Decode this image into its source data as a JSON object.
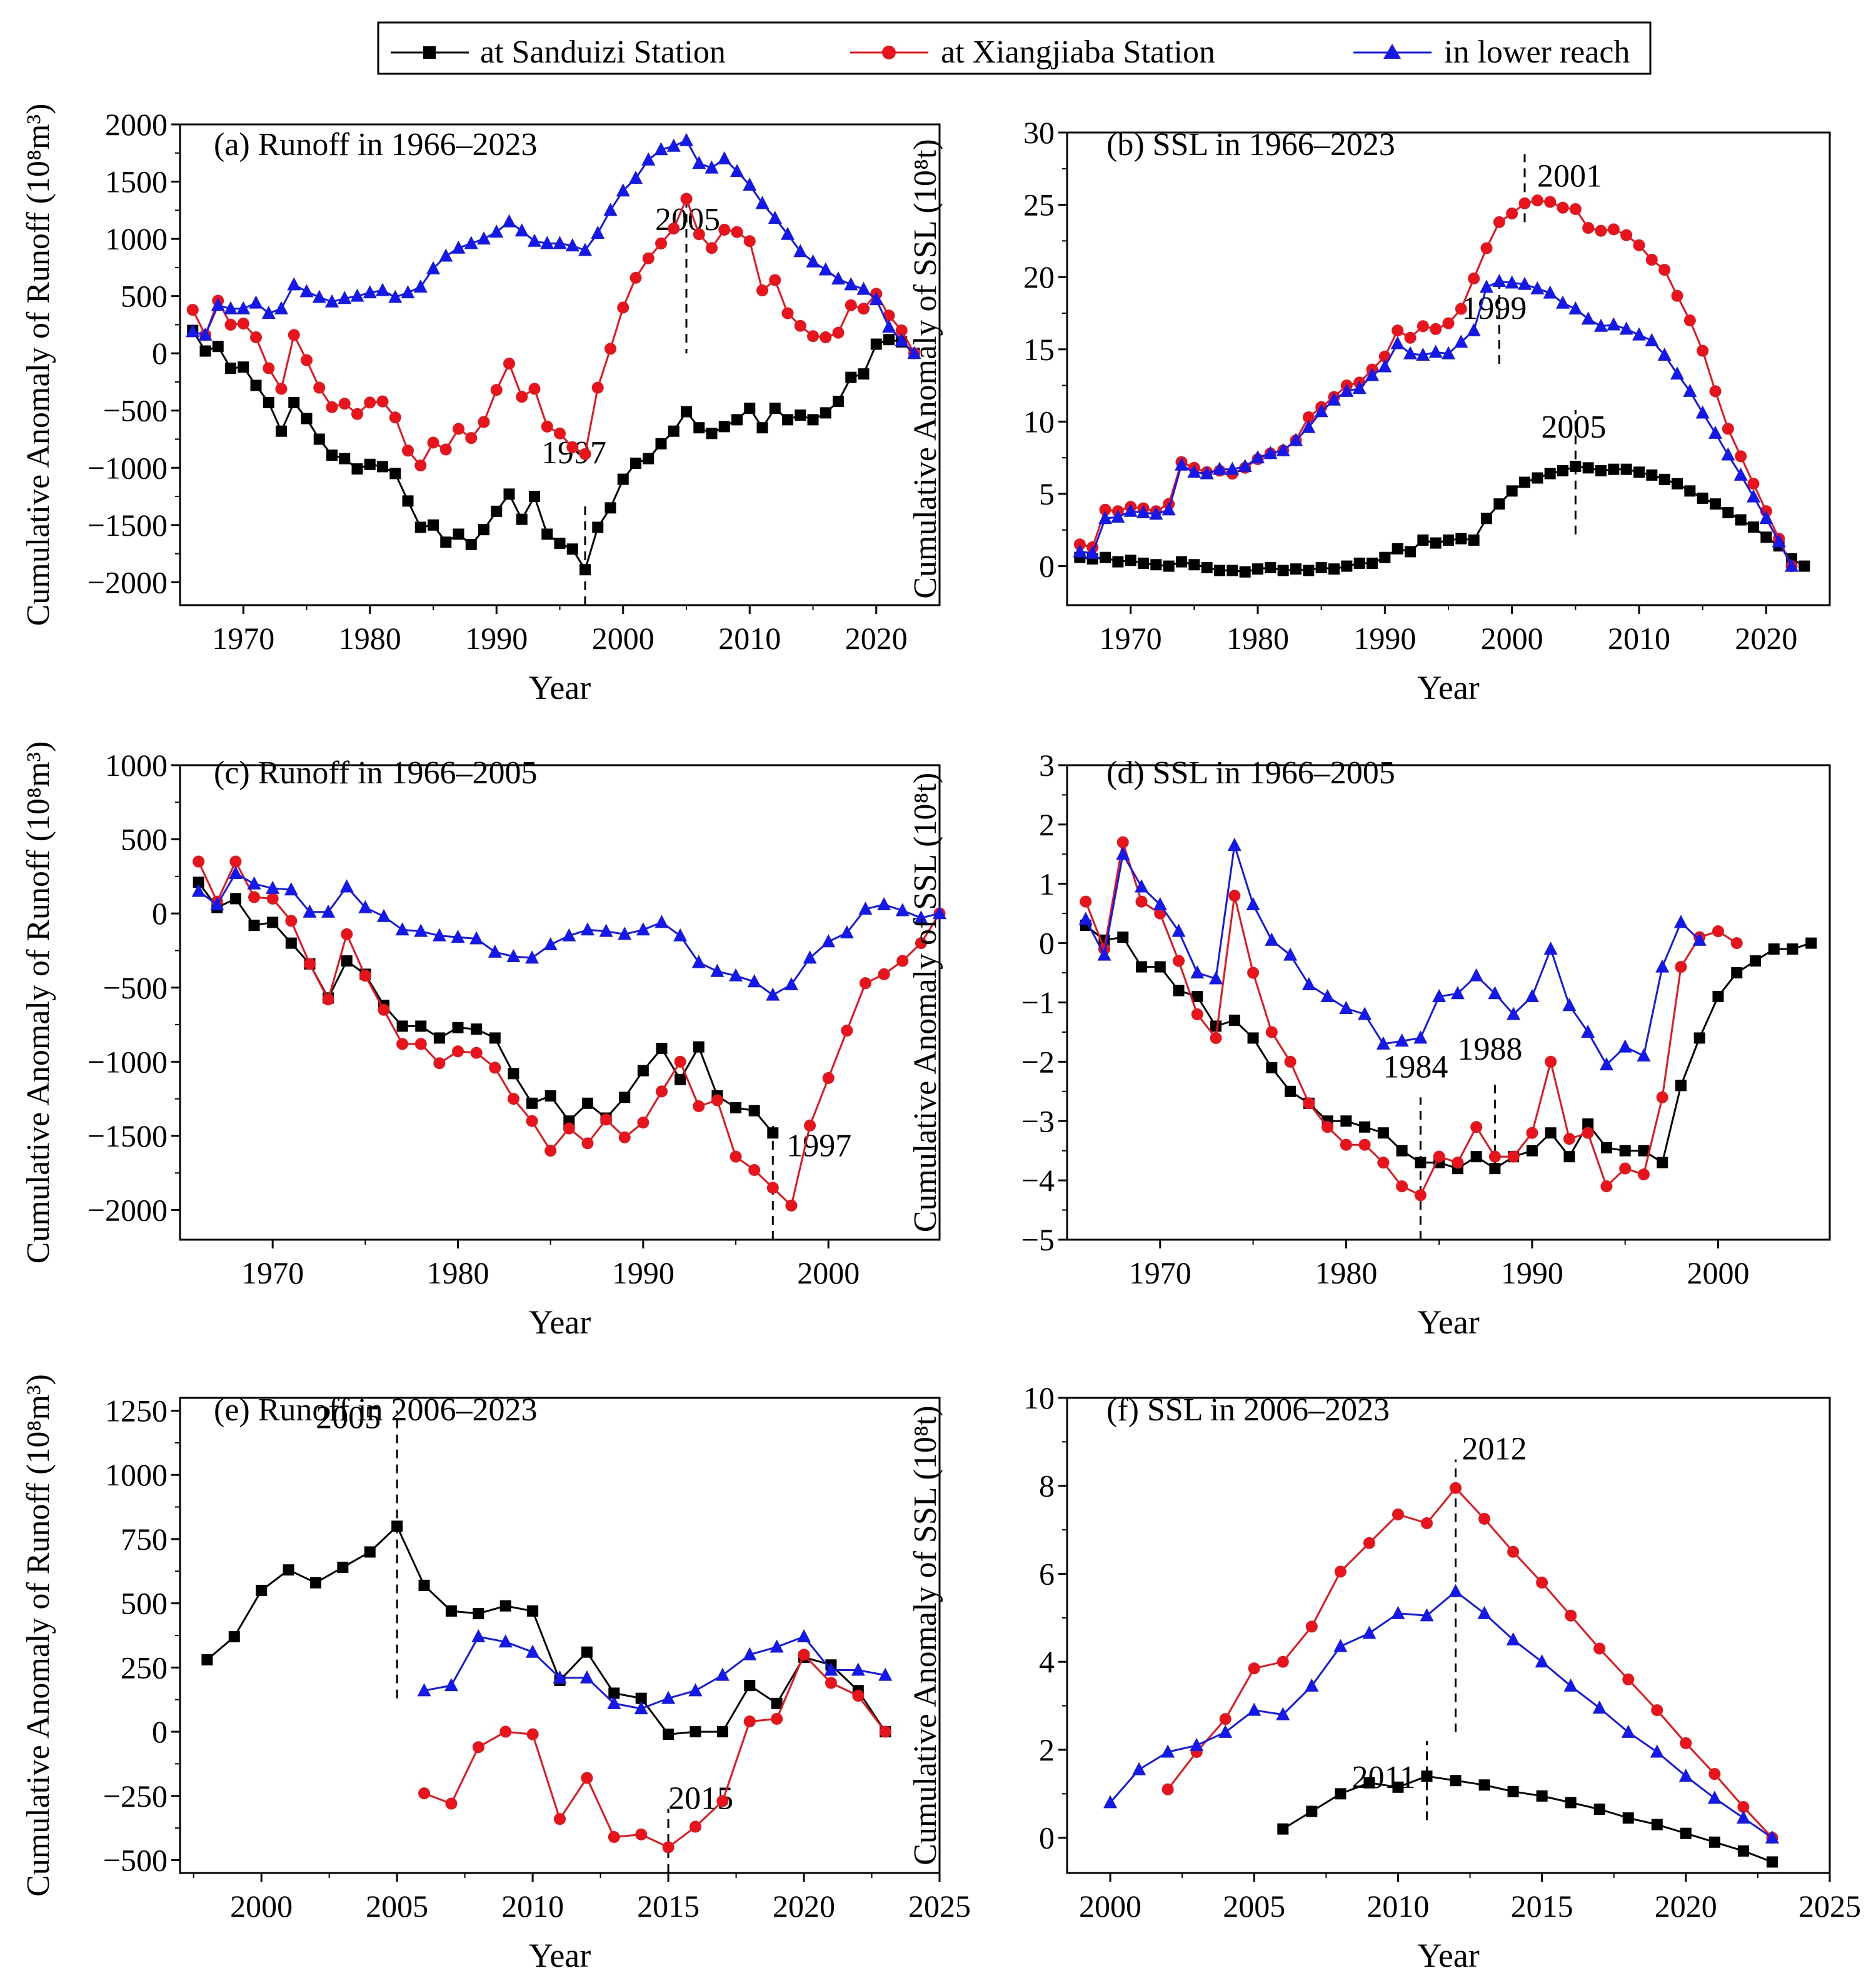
{
  "legend": {
    "entries": [
      {
        "name": "at Sanduizi Station",
        "color": "#000000",
        "marker": "square"
      },
      {
        "name": "at Xiangjiaba Station",
        "color": "#e8141c",
        "marker": "circle"
      },
      {
        "name": "in lower reach",
        "color": "#1418e8",
        "marker": "triangle"
      }
    ]
  },
  "chart_data": [
    {
      "id": "a",
      "type": "line",
      "title": "(a) Runoff in 1966–2023",
      "xlabel": "Year",
      "ylabel": "Cumulative Anomaly of Runoff (10⁸m³)",
      "xlim": [
        1965,
        2025
      ],
      "ylim": [
        -2200,
        2000
      ],
      "xticks": [
        1970,
        1980,
        1990,
        2000,
        2010,
        2020
      ],
      "yticks": [
        -2000,
        -1500,
        -1000,
        -500,
        0,
        500,
        1000,
        1500,
        2000
      ],
      "series": [
        {
          "name": "at Sanduizi Station",
          "x0": 1966,
          "values": [
            200,
            20,
            60,
            -130,
            -120,
            -280,
            -430,
            -680,
            -430,
            -570,
            -750,
            -890,
            -920,
            -1010,
            -970,
            -990,
            -1050,
            -1290,
            -1520,
            -1500,
            -1650,
            -1580,
            -1670,
            -1540,
            -1380,
            -1230,
            -1450,
            -1250,
            -1580,
            -1660,
            -1710,
            -1890,
            -1520,
            -1350,
            -1100,
            -960,
            -920,
            -790,
            -680,
            -510,
            -650,
            -700,
            -640,
            -580,
            -480,
            -650,
            -480,
            -580,
            -540,
            -580,
            -520,
            -420,
            -210,
            -180,
            80,
            120,
            100,
            0
          ]
        },
        {
          "name": "at Xiangjiaba Station",
          "x0": 1966,
          "values": [
            380,
            160,
            460,
            250,
            260,
            140,
            -130,
            -310,
            160,
            -60,
            -300,
            -470,
            -440,
            -530,
            -430,
            -420,
            -560,
            -850,
            -980,
            -780,
            -840,
            -660,
            -740,
            -600,
            -320,
            -90,
            -380,
            -310,
            -640,
            -700,
            -820,
            -880,
            -300,
            40,
            400,
            660,
            830,
            960,
            1090,
            1350,
            1040,
            920,
            1080,
            1060,
            980,
            550,
            640,
            350,
            240,
            150,
            140,
            180,
            420,
            390,
            520,
            330,
            200,
            0
          ]
        },
        {
          "name": "in lower reach",
          "x0": 1966,
          "values": [
            190,
            160,
            420,
            390,
            390,
            440,
            350,
            390,
            600,
            540,
            490,
            450,
            480,
            500,
            530,
            550,
            490,
            530,
            580,
            740,
            850,
            920,
            960,
            1000,
            1060,
            1150,
            1070,
            980,
            960,
            960,
            940,
            900,
            1050,
            1250,
            1420,
            1530,
            1690,
            1780,
            1810,
            1860,
            1660,
            1620,
            1700,
            1590,
            1470,
            1310,
            1180,
            1040,
            890,
            800,
            730,
            650,
            600,
            560,
            470,
            230,
            110,
            0
          ]
        }
      ],
      "annotations": [
        {
          "text": "2005",
          "x": 2005,
          "vline": [
            1350,
            0
          ]
        },
        {
          "text": "1997",
          "x": 1997,
          "vline": [
            -2200,
            -1300
          ]
        }
      ]
    },
    {
      "id": "b",
      "type": "line",
      "title": "(b) SSL in 1966–2023",
      "xlabel": "Year",
      "ylabel": "Cumulative Anomaly of SSL (10⁸t)",
      "xlim": [
        1965,
        2025
      ],
      "ylim": [
        -2.7,
        30
      ],
      "xticks": [
        1970,
        1980,
        1990,
        2000,
        2010,
        2020
      ],
      "yticks": [
        0,
        5,
        10,
        15,
        20,
        25,
        30
      ],
      "series": [
        {
          "name": "at Sanduizi Station",
          "x0": 1966,
          "values": [
            0.6,
            0.5,
            0.6,
            0.3,
            0.4,
            0.2,
            0.1,
            0.0,
            0.3,
            0.1,
            -0.1,
            -0.3,
            -0.3,
            -0.4,
            -0.2,
            -0.1,
            -0.3,
            -0.2,
            -0.3,
            -0.1,
            -0.2,
            0.0,
            0.2,
            0.2,
            0.6,
            1.2,
            1.0,
            1.8,
            1.6,
            1.8,
            1.9,
            1.8,
            3.3,
            4.3,
            5.2,
            5.8,
            6.1,
            6.4,
            6.6,
            6.9,
            6.8,
            6.6,
            6.7,
            6.7,
            6.5,
            6.3,
            6.0,
            5.7,
            5.2,
            4.7,
            4.3,
            3.7,
            3.2,
            2.7,
            2.0,
            1.4,
            0.5,
            0.0
          ]
        },
        {
          "name": "at Xiangjiaba Station",
          "x0": 1966,
          "values": [
            1.5,
            1.3,
            3.9,
            3.8,
            4.1,
            4.0,
            3.8,
            4.3,
            7.2,
            6.8,
            6.5,
            6.6,
            6.4,
            6.8,
            7.4,
            7.8,
            8.0,
            8.7,
            10.3,
            11.0,
            11.7,
            12.5,
            12.7,
            13.6,
            14.5,
            16.3,
            15.8,
            16.6,
            16.4,
            16.8,
            17.8,
            19.9,
            22.0,
            23.8,
            24.4,
            25.1,
            25.3,
            25.2,
            24.8,
            24.7,
            23.4,
            23.2,
            23.3,
            22.9,
            22.2,
            21.2,
            20.5,
            18.7,
            17.0,
            14.9,
            12.1,
            9.5,
            7.6,
            5.7,
            3.8,
            1.9,
            0.0
          ]
        },
        {
          "name": "in lower reach",
          "x0": 1966,
          "values": [
            1.0,
            0.9,
            3.3,
            3.4,
            3.8,
            3.7,
            3.6,
            3.9,
            7.0,
            6.5,
            6.4,
            6.7,
            6.7,
            6.9,
            7.5,
            7.8,
            8.0,
            8.7,
            9.6,
            10.7,
            11.5,
            12.1,
            12.3,
            13.2,
            13.8,
            15.4,
            14.7,
            14.6,
            14.8,
            14.7,
            15.5,
            16.3,
            19.3,
            19.7,
            19.6,
            19.5,
            19.2,
            18.9,
            18.2,
            17.8,
            17.1,
            16.6,
            16.7,
            16.4,
            16.0,
            15.6,
            14.6,
            13.3,
            12.1,
            10.6,
            9.2,
            7.7,
            6.3,
            4.8,
            3.3,
            1.7,
            0.0
          ]
        }
      ],
      "annotations": [
        {
          "text": "2001",
          "x": 2001,
          "vline": [
            23.8,
            28.5
          ]
        },
        {
          "text": "1999",
          "x": 1999,
          "vline": [
            14,
            19.7
          ]
        },
        {
          "text": "2005",
          "x": 2005,
          "vline": [
            2.2,
            10.8
          ]
        }
      ]
    },
    {
      "id": "c",
      "type": "line",
      "title": "(c) Runoff in 1966–2005",
      "xlabel": "Year",
      "ylabel": "Cumulative Anomaly of Runoff (10⁸m³)",
      "xlim": [
        1965,
        2006
      ],
      "ylim": [
        -2200,
        1000
      ],
      "xticks": [
        1970,
        1980,
        1990,
        2000
      ],
      "yticks": [
        -2000,
        -1500,
        -1000,
        -500,
        0,
        500,
        1000
      ],
      "series": [
        {
          "name": "at Sanduizi Station",
          "x0": 1966,
          "values": [
            210,
            40,
            100,
            -80,
            -60,
            -200,
            -340,
            -570,
            -320,
            -410,
            -620,
            -760,
            -760,
            -840,
            -770,
            -780,
            -840,
            -1080,
            -1280,
            -1230,
            -1400,
            -1280,
            -1380,
            -1240,
            -1060,
            -910,
            -1120,
            -900,
            -1230,
            -1310,
            -1330,
            -1480
          ]
        },
        {
          "name": "at Xiangjiaba Station",
          "x0": 1966,
          "values": [
            350,
            80,
            350,
            110,
            100,
            -50,
            -340,
            -580,
            -140,
            -420,
            -650,
            -880,
            -880,
            -1010,
            -930,
            -940,
            -1040,
            -1250,
            -1400,
            -1600,
            -1450,
            -1550,
            -1390,
            -1510,
            -1410,
            -1200,
            -1000,
            -1300,
            -1260,
            -1640,
            -1730,
            -1850,
            -1970,
            -1430,
            -1110,
            -790,
            -470,
            -410,
            -320,
            -200,
            0
          ]
        },
        {
          "name": "in lower reach",
          "x0": 1966,
          "values": [
            150,
            60,
            270,
            200,
            170,
            160,
            10,
            10,
            180,
            40,
            -20,
            -110,
            -120,
            -150,
            -160,
            -170,
            -260,
            -290,
            -300,
            -210,
            -150,
            -110,
            -120,
            -140,
            -110,
            -60,
            -150,
            -330,
            -390,
            -420,
            -460,
            -550,
            -480,
            -300,
            -190,
            -130,
            30,
            60,
            20,
            -30,
            0
          ]
        }
      ],
      "annotations": [
        {
          "text": "1997",
          "x": 1997,
          "vline": [
            -2200,
            -1400
          ]
        }
      ]
    },
    {
      "id": "d",
      "type": "line",
      "title": "(d) SSL in 1966–2005",
      "xlabel": "Year",
      "ylabel": "Cumulative Anomaly of SSL (10⁸t)",
      "xlim": [
        1965,
        2006
      ],
      "ylim": [
        -5,
        3
      ],
      "xticks": [
        1970,
        1980,
        1990,
        2000
      ],
      "yticks": [
        -5,
        -4,
        -3,
        -2,
        -1,
        0,
        1,
        2,
        3
      ],
      "series": [
        {
          "name": "at Sanduizi Station",
          "x0": 1966,
          "values": [
            0.3,
            0.05,
            0.1,
            -0.4,
            -0.4,
            -0.8,
            -0.9,
            -1.4,
            -1.3,
            -1.6,
            -2.1,
            -2.5,
            -2.7,
            -3.0,
            -3.0,
            -3.1,
            -3.2,
            -3.5,
            -3.7,
            -3.7,
            -3.8,
            -3.6,
            -3.8,
            -3.6,
            -3.5,
            -3.2,
            -3.6,
            -3.05,
            -3.45,
            -3.5,
            -3.5,
            -3.7,
            -2.4,
            -1.6,
            -0.9,
            -0.5,
            -0.3,
            -0.1,
            -0.1,
            0.0
          ]
        },
        {
          "name": "at Xiangjiaba Station",
          "x0": 1966,
          "values": [
            0.7,
            -0.1,
            1.7,
            0.7,
            0.5,
            -0.3,
            -1.2,
            -1.6,
            0.8,
            -0.5,
            -1.5,
            -2.0,
            -2.7,
            -3.1,
            -3.4,
            -3.4,
            -3.7,
            -4.1,
            -4.25,
            -3.6,
            -3.7,
            -3.1,
            -3.6,
            -3.6,
            -3.2,
            -2.0,
            -3.3,
            -3.2,
            -4.1,
            -3.8,
            -3.9,
            -2.6,
            -0.4,
            0.1,
            0.2,
            0.0
          ]
        },
        {
          "name": "in lower reach",
          "x0": 1966,
          "values": [
            0.4,
            -0.2,
            1.5,
            0.95,
            0.65,
            0.2,
            -0.5,
            -0.6,
            1.65,
            0.65,
            0.05,
            -0.2,
            -0.7,
            -0.9,
            -1.1,
            -1.2,
            -1.7,
            -1.65,
            -1.6,
            -0.9,
            -0.85,
            -0.55,
            -0.85,
            -1.2,
            -0.9,
            -0.1,
            -1.05,
            -1.5,
            -2.05,
            -1.75,
            -1.9,
            -0.4,
            0.35,
            0.05
          ]
        }
      ],
      "annotations": [
        {
          "text": "1984",
          "x": 1984,
          "vline": [
            -5,
            -2.6
          ]
        },
        {
          "text": "1988",
          "x": 1988,
          "vline": [
            -3.8,
            -2.3
          ]
        }
      ]
    },
    {
      "id": "e",
      "type": "line",
      "title": "(e) Runoff in 2006–2023",
      "xlabel": "Year",
      "ylabel": "Cumulative Anomaly of Runoff (10⁸m³)",
      "xlim": [
        1997,
        2025
      ],
      "ylim": [
        -550,
        1300
      ],
      "xticks": [
        2000,
        2005,
        2010,
        2015,
        2020,
        2025
      ],
      "yticks": [
        -500,
        -250,
        0,
        250,
        500,
        750,
        1000,
        1250
      ],
      "series": [
        {
          "name": "at Sanduizi Station",
          "x0": 1998,
          "values": [
            280,
            370,
            550,
            630,
            580,
            640,
            700,
            800,
            570,
            470,
            460,
            490,
            470,
            200,
            310,
            150,
            130,
            -10,
            0,
            0,
            180,
            110,
            290,
            260,
            160,
            0
          ]
        },
        {
          "name": "at Xiangjiaba Station",
          "x0": 2006,
          "values": [
            -240,
            -280,
            -60,
            0,
            -10,
            -340,
            -180,
            -410,
            -400,
            -450,
            -370,
            -270,
            40,
            50,
            300,
            190,
            140,
            0
          ]
        },
        {
          "name": "in lower reach",
          "x0": 2006,
          "values": [
            160,
            180,
            370,
            350,
            310,
            210,
            210,
            110,
            90,
            130,
            160,
            220,
            300,
            330,
            370,
            240,
            240,
            220
          ]
        }
      ],
      "annotations": [
        {
          "text": "2005",
          "x": 2005,
          "vline": [
            130,
            1250
          ]
        },
        {
          "text": "2015",
          "x": 2015,
          "vline": [
            -550,
            -300
          ]
        }
      ]
    },
    {
      "id": "f",
      "type": "line",
      "title": "(f) SSL in 2006–2023",
      "xlabel": "Year",
      "ylabel": "Cumulative Anomaly of SSL (10⁸t)",
      "xlim": [
        1998.5,
        2025
      ],
      "ylim": [
        -0.8,
        10
      ],
      "xticks": [
        2000,
        2005,
        2010,
        2015,
        2020,
        2025
      ],
      "yticks": [
        0,
        2,
        4,
        6,
        8,
        10
      ],
      "series": [
        {
          "name": "at Sanduizi Station",
          "x0": 2006,
          "values": [
            0.2,
            0.6,
            1.0,
            1.25,
            1.15,
            1.4,
            1.3,
            1.2,
            1.05,
            0.95,
            0.8,
            0.65,
            0.45,
            0.3,
            0.1,
            -0.1,
            -0.3,
            -0.55
          ]
        },
        {
          "name": "at Xiangjiaba Station",
          "x0": 2002,
          "values": [
            1.1,
            1.95,
            2.7,
            3.85,
            4.0,
            4.8,
            6.05,
            6.7,
            7.35,
            7.15,
            7.95,
            7.25,
            6.5,
            5.8,
            5.05,
            4.3,
            3.6,
            2.9,
            2.15,
            1.45,
            0.7,
            0.0
          ]
        },
        {
          "name": "in lower reach",
          "x0": 2000,
          "values": [
            0.8,
            1.55,
            1.95,
            2.1,
            2.4,
            2.9,
            2.8,
            3.45,
            4.35,
            4.65,
            5.1,
            5.05,
            5.6,
            5.1,
            4.5,
            4.0,
            3.45,
            2.95,
            2.4,
            1.95,
            1.4,
            0.9,
            0.45,
            0.0
          ]
        }
      ],
      "annotations": [
        {
          "text": "2012",
          "x": 2012,
          "vline": [
            2.4,
            8.6
          ]
        },
        {
          "text": "2011",
          "x": 2011,
          "vline": [
            0.4,
            2.2
          ]
        }
      ]
    }
  ]
}
